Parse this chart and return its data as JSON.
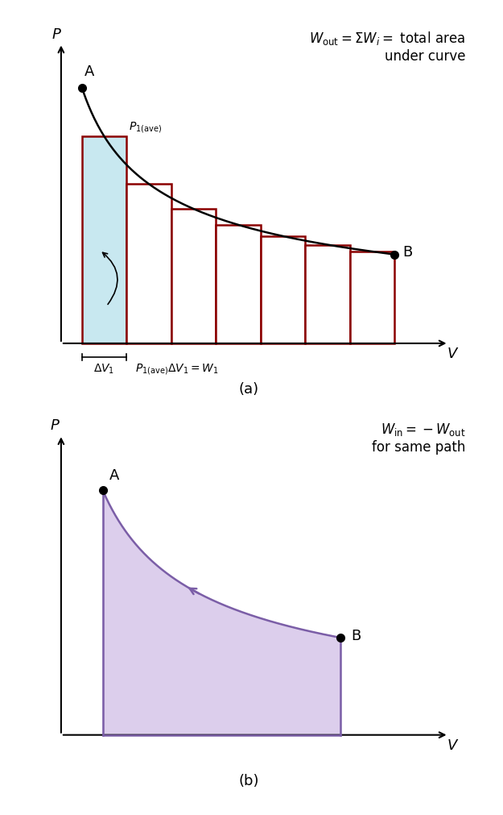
{
  "fig_width": 6.25,
  "fig_height": 10.12,
  "background_color": "#ffffff",
  "panel_a": {
    "title_eq": "$W_{\\mathrm{out}} = \\Sigma W_i =$ total area\nunder curve",
    "title_fontsize": 12,
    "xlabel": "$V$",
    "ylabel": "$P$",
    "curve_color": "#000000",
    "bar_edge_color": "#8b0000",
    "bar_fill_color_first": "#c8e8f0",
    "bar_fill_color_rest": "#ffffff",
    "point_A_x": 1.0,
    "point_A_y": 9.2,
    "point_B_x": 8.5,
    "point_B_y": 3.2,
    "bars_x_start": 1.0,
    "bars_x_end": 8.5,
    "n_bars": 7,
    "label_a": "A",
    "label_b": "B",
    "p1ave_label": "$P_{1(\\mathrm{ave})}$",
    "dv_label": "$\\Delta V_1$",
    "eq_label": "$P_{1(\\mathrm{ave})} \\Delta V_1 = W_1$",
    "sub_label": "(a)",
    "xlim": [
      0,
      10.5
    ],
    "ylim": [
      -2.0,
      11.5
    ]
  },
  "panel_b": {
    "title_eq": "$W_{\\mathrm{in}} = -W_{\\mathrm{out}}$\nfor same path",
    "title_fontsize": 12,
    "xlabel": "$V$",
    "ylabel": "$P$",
    "curve_color": "#7b5ea7",
    "fill_color": "#c5aee0",
    "fill_alpha": 0.6,
    "point_A_x": 1.5,
    "point_A_y": 8.8,
    "point_B_x": 7.2,
    "point_B_y": 3.5,
    "label_a": "A",
    "label_b": "B",
    "sub_label": "(b)",
    "xlim": [
      0,
      10.5
    ],
    "ylim": [
      -2.0,
      11.5
    ]
  }
}
